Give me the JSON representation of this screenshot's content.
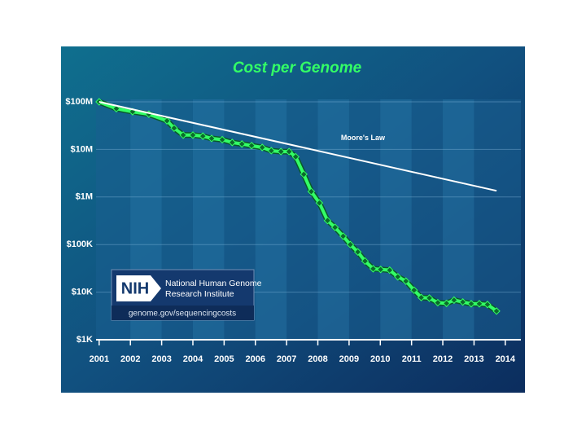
{
  "chart_data": {
    "type": "line",
    "title": "Cost per Genome",
    "log_scale": true,
    "grid": true,
    "xlim": [
      2000.9,
      2014.5
    ],
    "xticks": [
      2001,
      2002,
      2003,
      2004,
      2005,
      2006,
      2007,
      2008,
      2009,
      2010,
      2011,
      2012,
      2013,
      2014
    ],
    "ylim": [
      1000,
      100000000
    ],
    "yticks": [
      {
        "value": 1000,
        "label": "$1K"
      },
      {
        "value": 10000,
        "label": "$10K"
      },
      {
        "value": 100000,
        "label": "$100K"
      },
      {
        "value": 1000000,
        "label": "$1M"
      },
      {
        "value": 10000000,
        "label": "$10M"
      },
      {
        "value": 100000000,
        "label": "$100M"
      }
    ],
    "series": [
      {
        "name": "Cost per Genome",
        "color": "#33ff66",
        "x": [
          2001.0,
          2001.55,
          2002.07,
          2002.59,
          2003.17,
          2003.4,
          2003.69,
          2004.0,
          2004.32,
          2004.6,
          2004.94,
          2005.26,
          2005.57,
          2005.88,
          2006.22,
          2006.51,
          2006.82,
          2007.08,
          2007.29,
          2007.55,
          2007.79,
          2008.05,
          2008.31,
          2008.55,
          2008.81,
          2009.04,
          2009.28,
          2009.51,
          2009.77,
          2010.01,
          2010.3,
          2010.56,
          2010.82,
          2011.08,
          2011.31,
          2011.57,
          2011.84,
          2012.12,
          2012.36,
          2012.64,
          2012.91,
          2013.17,
          2013.43,
          2013.72
        ],
        "values": [
          100000000,
          72000000,
          62000000,
          55000000,
          40000000,
          28000000,
          20000000,
          20000000,
          19000000,
          17000000,
          16000000,
          14000000,
          13000000,
          12000000,
          11000000,
          9400000,
          9000000,
          9000000,
          7000000,
          3000000,
          1300000,
          750000,
          320000,
          230000,
          150000,
          100000,
          70000,
          45000,
          31000,
          30000,
          29000,
          21000,
          17000,
          11000,
          7700,
          7500,
          6000,
          5800,
          6800,
          6200,
          5700,
          5700,
          5500,
          4000
        ]
      },
      {
        "name": "Moore's Law",
        "color": "#ffffff",
        "x": [
          2001.0,
          2013.72
        ],
        "values": [
          100000000,
          1350000
        ]
      }
    ]
  },
  "logo": {
    "acronym": "NIH",
    "name_lines": [
      "National Human Genome",
      "Research Institute"
    ],
    "url": "genome.gov/sequencingcosts"
  }
}
